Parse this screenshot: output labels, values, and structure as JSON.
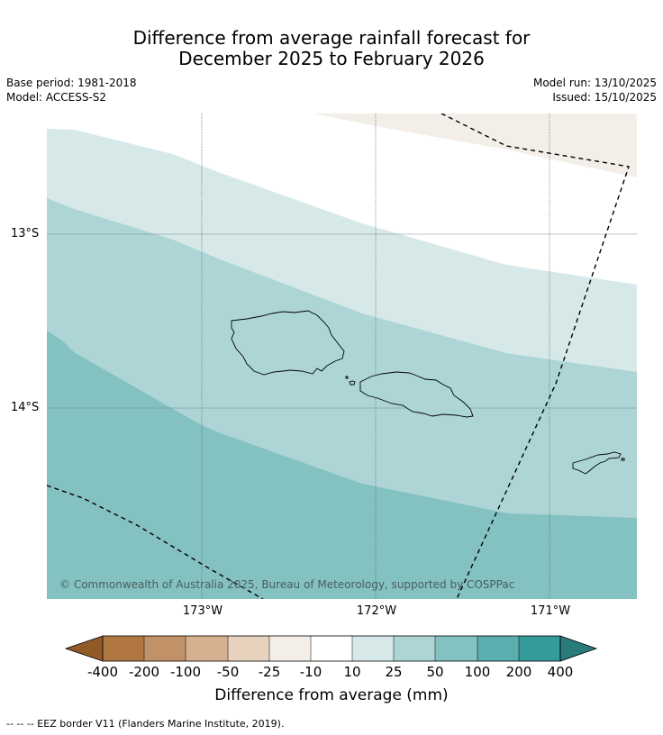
{
  "title": {
    "line1": "Difference from average rainfall forecast for",
    "line2": "December 2025 to February 2026"
  },
  "meta_left": {
    "base_period": "Base period: 1981-2018",
    "model": "Model: ACCESS-S2"
  },
  "meta_right": {
    "model_run": "Model run: 13/10/2025",
    "issued": "Issued: 15/10/2025"
  },
  "axes": {
    "lat": [
      "13°S",
      "14°S"
    ],
    "lon": [
      "173°W",
      "172°W",
      "171°W"
    ]
  },
  "map": {
    "copyright": "© Commonwealth of Australia 2025, Bureau of Meteorology, supported by COSPPac",
    "regions": [
      "10 to 25 mm",
      "25 to 50 mm",
      "50 to 100 mm",
      "-25 to -10 mm"
    ],
    "land": [
      "Savai'i",
      "Upolu",
      "Tutuila"
    ]
  },
  "colorbar": {
    "title": "Difference from average (mm)",
    "ticks": [
      "-400",
      "-200",
      "-100",
      "-50",
      "-25",
      "-10",
      "10",
      "25",
      "50",
      "100",
      "200",
      "400"
    ],
    "colors": {
      "lt_-400": "#925a26",
      "m400_m200": "#b07840",
      "m200_m100": "#c19268",
      "m100_m50": "#d5b190",
      "m50_m25": "#e6d2bd",
      "m25_m10": "#f3efe8",
      "m10_10": "#ffffff",
      "10_25": "#d6e9e8",
      "25_50": "#add5d5",
      "50_100": "#84c1c1",
      "100_200": "#5aaeae",
      "200_400": "#349a9a",
      "gt_400": "#2a7b7b"
    }
  },
  "footnote": "--  --  -- EEZ border V11 (Flanders Marine Institute, 2019)."
}
